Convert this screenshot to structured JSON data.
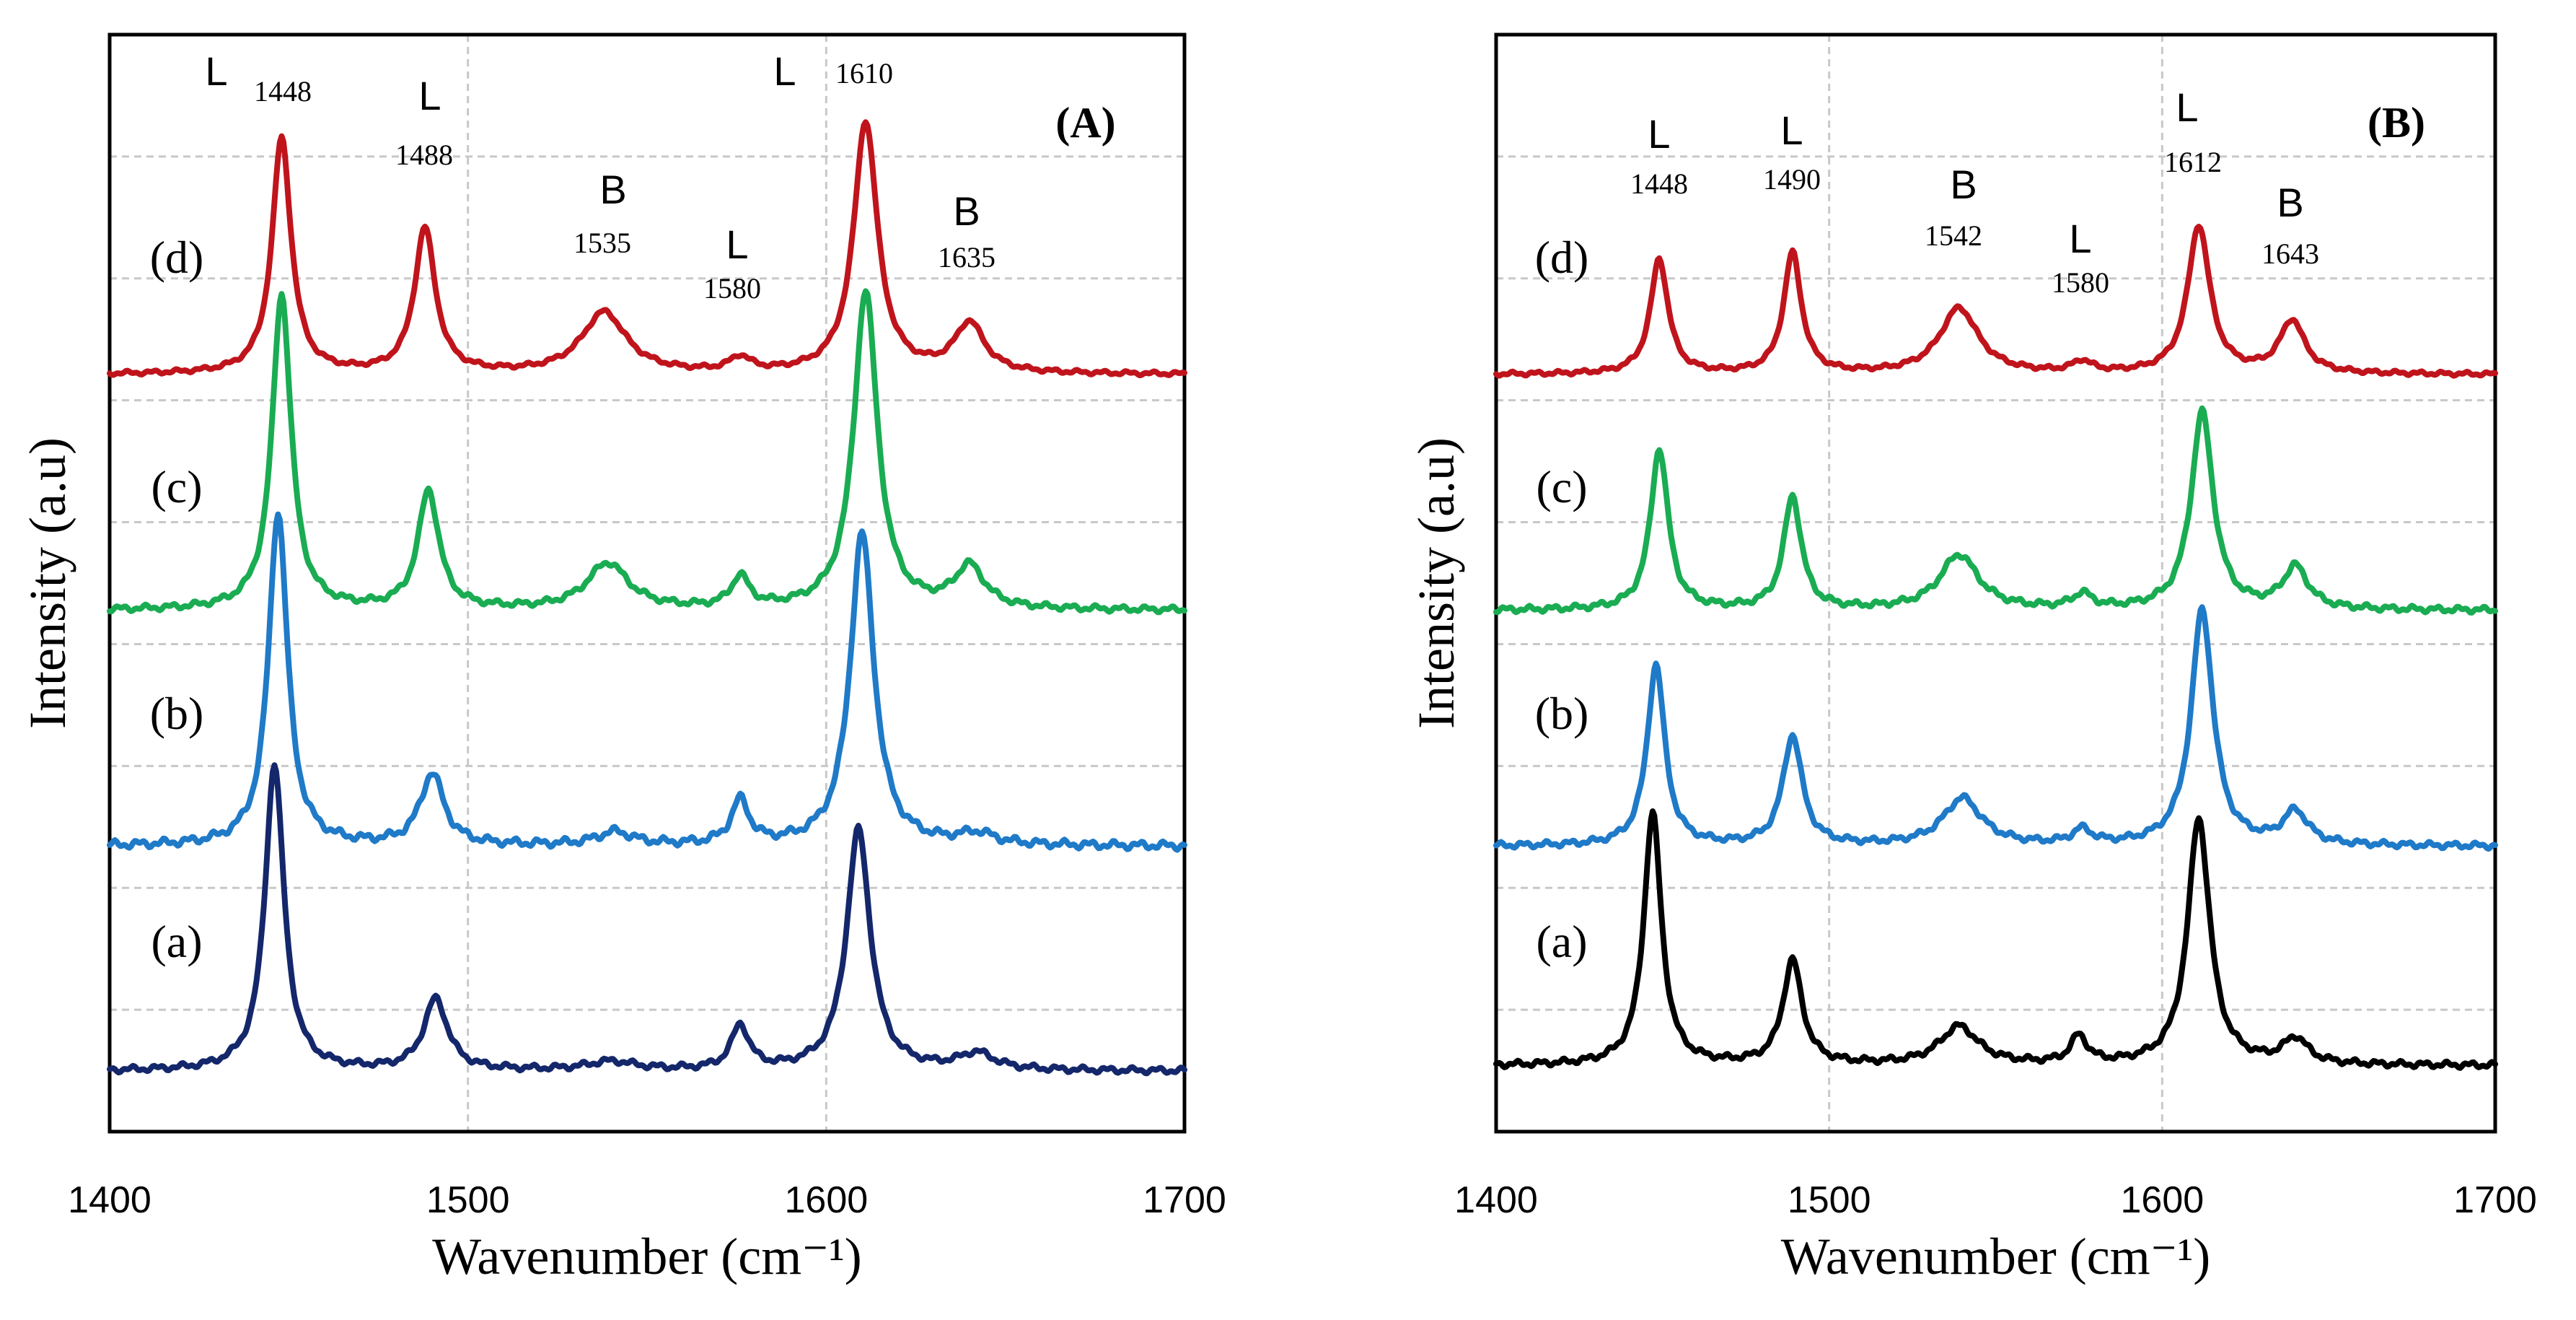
{
  "chart_data": [
    {
      "type": "line",
      "panel_label": "(A)",
      "title": "",
      "xlabel": "Wavenumber (cm⁻¹)",
      "ylabel": "Intensity (a.u)",
      "xlim": [
        1400,
        1700
      ],
      "ylim": [
        0,
        1
      ],
      "x_ticks": [
        "1400",
        "1500",
        "1600",
        "1700"
      ],
      "grid": true,
      "series": [
        {
          "name": "(d)",
          "color": "#c0141c",
          "offset": 0.69,
          "noise": 0.002,
          "peaks": [
            [
              1448,
              0.215,
              3.2
            ],
            [
              1488,
              0.132,
              3.5
            ],
            [
              1538,
              0.056,
              7.5
            ],
            [
              1576,
              0.013,
              3.5
            ],
            [
              1611,
              0.23,
              4.0
            ],
            [
              1640,
              0.045,
              5.0
            ]
          ]
        },
        {
          "name": "(c)",
          "color": "#1aac52",
          "offset": 0.475,
          "noise": 0.003,
          "peaks": [
            [
              1448,
              0.288,
              3.2
            ],
            [
              1489,
              0.108,
              3.5
            ],
            [
              1539,
              0.042,
              7.0
            ],
            [
              1576,
              0.028,
              3.0
            ],
            [
              1611,
              0.29,
              4.0
            ],
            [
              1640,
              0.038,
              5.0
            ]
          ]
        },
        {
          "name": "(b)",
          "color": "#1f7ac8",
          "offset": 0.26,
          "noise": 0.004,
          "peaks": [
            [
              1447,
              0.305,
              3.2
            ],
            [
              1490,
              0.065,
              4.0
            ],
            [
              1541,
              0.012,
              6.0
            ],
            [
              1576,
              0.04,
              3.0
            ],
            [
              1610,
              0.285,
              4.0
            ],
            [
              1642,
              0.01,
              6.0
            ]
          ]
        },
        {
          "name": "(a)",
          "color": "#14276b",
          "offset": 0.055,
          "noise": 0.003,
          "peaks": [
            [
              1446,
              0.28,
              3.2
            ],
            [
              1491,
              0.065,
              4.0
            ],
            [
              1540,
              0.008,
              8.0
            ],
            [
              1576,
              0.04,
              3.0
            ],
            [
              1609,
              0.22,
              4.0
            ],
            [
              1642,
              0.015,
              6.0
            ]
          ]
        }
      ],
      "annotations": [
        {
          "letter": "L",
          "wavenumber": "1448"
        },
        {
          "letter": "L",
          "wavenumber": "1488"
        },
        {
          "letter": "B",
          "wavenumber": "1535"
        },
        {
          "letter": "L",
          "wavenumber": "1580"
        },
        {
          "letter": "L",
          "wavenumber": "1610"
        },
        {
          "letter": "B",
          "wavenumber": "1635"
        }
      ]
    },
    {
      "type": "line",
      "panel_label": "(B)",
      "title": "",
      "xlabel": "Wavenumber (cm⁻¹)",
      "ylabel": "Intensity (a.u)",
      "xlim": [
        1400,
        1700
      ],
      "ylim": [
        0,
        1
      ],
      "x_ticks": [
        "1400",
        "1500",
        "1600",
        "1700"
      ],
      "grid": true,
      "series": [
        {
          "name": "(d)",
          "color": "#c0141c",
          "offset": 0.69,
          "noise": 0.002,
          "peaks": [
            [
              1449,
              0.105,
              3.2
            ],
            [
              1489,
              0.11,
              3.2
            ],
            [
              1539,
              0.06,
              7.0
            ],
            [
              1576,
              0.01,
              3.5
            ],
            [
              1611,
              0.135,
              4.0
            ],
            [
              1639,
              0.048,
              4.5
            ]
          ]
        },
        {
          "name": "(c)",
          "color": "#1aac52",
          "offset": 0.475,
          "noise": 0.003,
          "peaks": [
            [
              1449,
              0.147,
              3.2
            ],
            [
              1489,
              0.103,
              3.2
            ],
            [
              1539,
              0.05,
              7.0
            ],
            [
              1576,
              0.013,
              3.5
            ],
            [
              1612,
              0.18,
              4.0
            ],
            [
              1640,
              0.038,
              4.5
            ]
          ]
        },
        {
          "name": "(b)",
          "color": "#1f7ac8",
          "offset": 0.26,
          "noise": 0.003,
          "peaks": [
            [
              1448,
              0.165,
              3.2
            ],
            [
              1489,
              0.1,
              3.5
            ],
            [
              1540,
              0.043,
              7.0
            ],
            [
              1576,
              0.013,
              3.5
            ],
            [
              1612,
              0.215,
              4.0
            ],
            [
              1640,
              0.03,
              4.5
            ]
          ]
        },
        {
          "name": "(a)",
          "color": "#000000",
          "offset": 0.06,
          "noise": 0.003,
          "peaks": [
            [
              1447,
              0.23,
              3.2
            ],
            [
              1489,
              0.095,
              3.5
            ],
            [
              1539,
              0.035,
              7.0
            ],
            [
              1575,
              0.025,
              3.0
            ],
            [
              1611,
              0.225,
              4.0
            ],
            [
              1640,
              0.023,
              4.5
            ]
          ]
        }
      ],
      "annotations": [
        {
          "letter": "L",
          "wavenumber": "1448"
        },
        {
          "letter": "L",
          "wavenumber": "1490"
        },
        {
          "letter": "B",
          "wavenumber": "1542"
        },
        {
          "letter": "L",
          "wavenumber": "1580"
        },
        {
          "letter": "L",
          "wavenumber": "1612"
        },
        {
          "letter": "B",
          "wavenumber": "1643"
        }
      ]
    }
  ]
}
